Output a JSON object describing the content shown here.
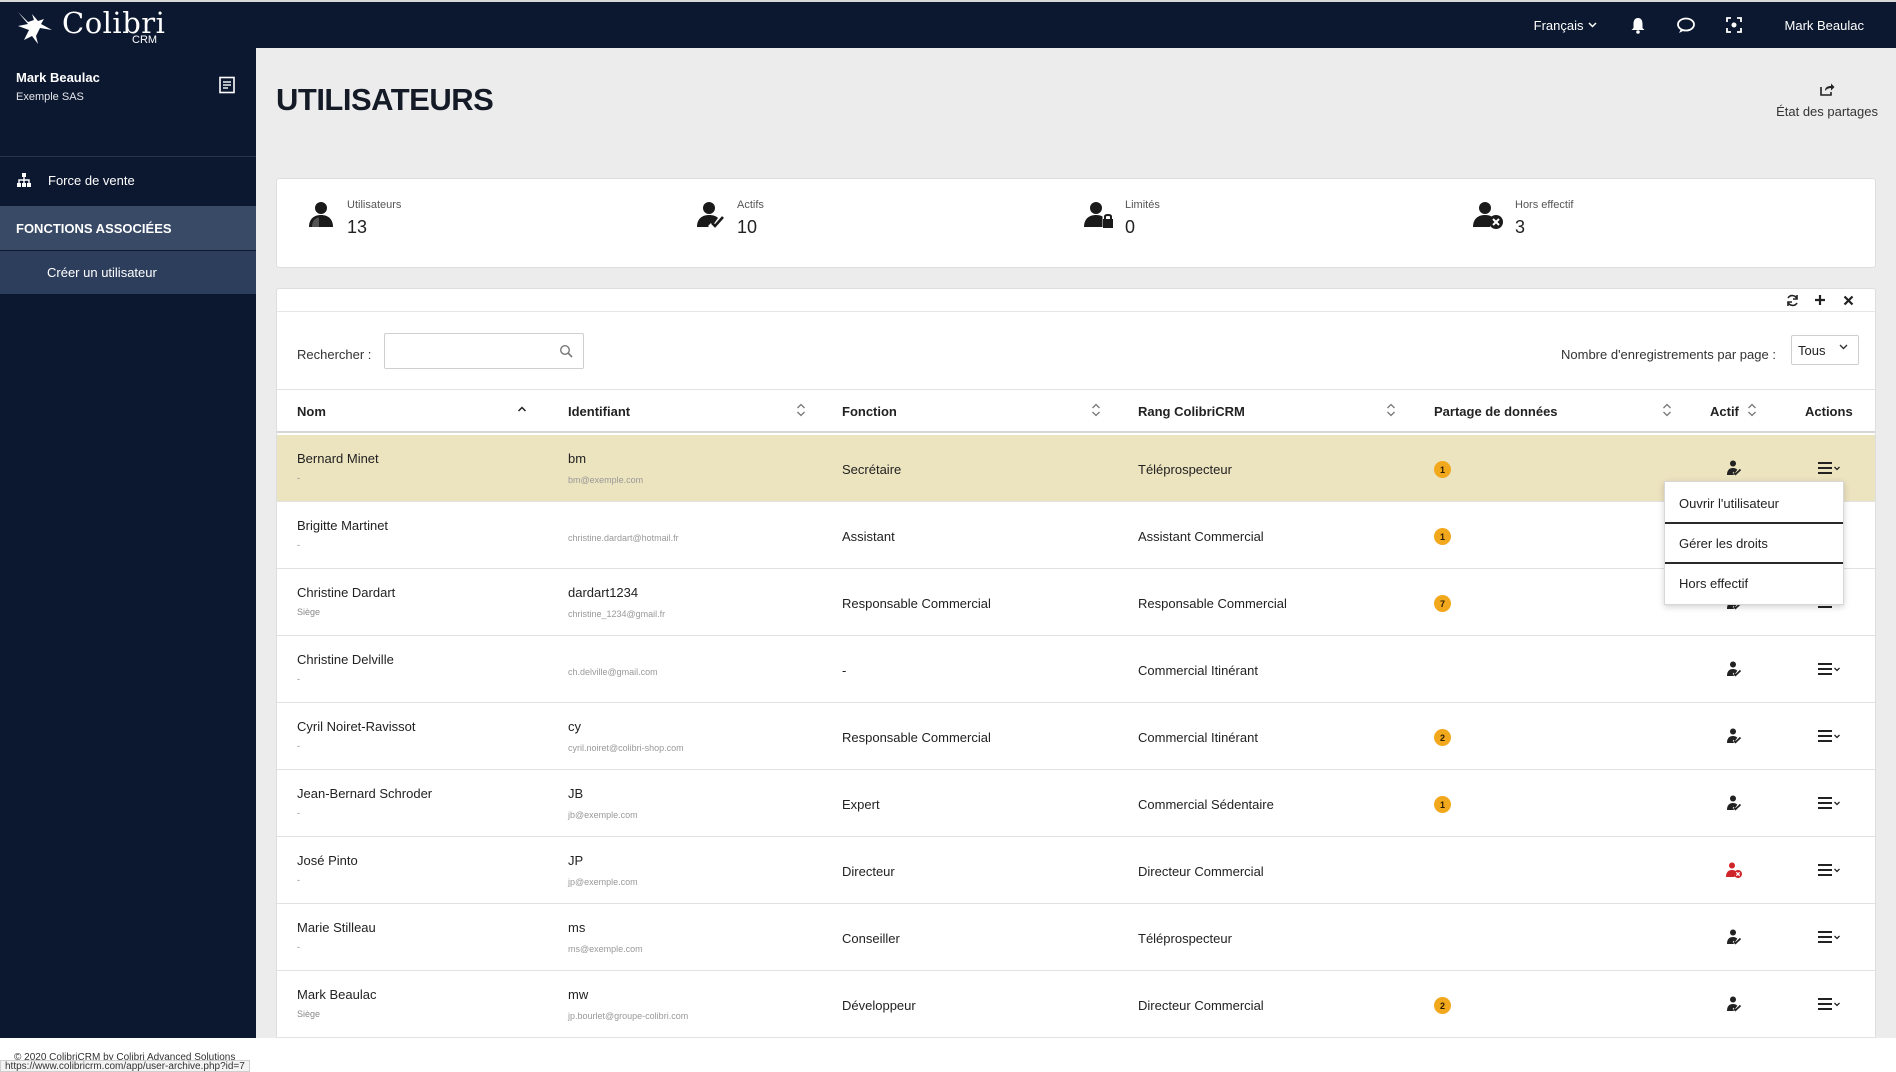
{
  "app": {
    "logo_text": "Colibri",
    "logo_sub": "CRM"
  },
  "topbar": {
    "language": "Français",
    "user": "Mark Beaulac"
  },
  "sidebar": {
    "user_name": "Mark Beaulac",
    "company": "Exemple SAS",
    "items": [
      {
        "label": "Force de vente"
      }
    ],
    "section_title": "FONCTIONS ASSOCIÉES",
    "sub_items": [
      {
        "label": "Créer un utilisateur"
      }
    ]
  },
  "page": {
    "title": "UTILISATEURS",
    "share_state_label": "État des partages"
  },
  "stats": [
    {
      "label": "Utilisateurs",
      "value": "13"
    },
    {
      "label": "Actifs",
      "value": "10"
    },
    {
      "label": "Limités",
      "value": "0"
    },
    {
      "label": "Hors effectif",
      "value": "3"
    }
  ],
  "table": {
    "search_label": "Rechercher :",
    "search_value": "",
    "per_page_label": "Nombre d'enregistrements par page :",
    "per_page_value": "Tous",
    "columns": [
      "Nom",
      "Identifiant",
      "Fonction",
      "Rang ColibriCRM",
      "Partage de données",
      "Actif",
      "Actions"
    ],
    "rows": [
      {
        "name": "Bernard Minet",
        "name_sub": "-",
        "id": "bm",
        "email": "bm@exemple.com",
        "function": "Secrétaire",
        "rank": "Téléprospecteur",
        "share": "1",
        "active": true,
        "highlighted": true
      },
      {
        "name": "Brigitte Martinet",
        "name_sub": "-",
        "id": "",
        "email": "christine.dardart@hotmail.fr",
        "function": "Assistant",
        "rank": "Assistant Commercial",
        "share": "1",
        "active": true
      },
      {
        "name": "Christine Dardart",
        "name_sub": "Siège",
        "id": "dardart1234",
        "email": "christine_1234@gmail.fr",
        "function": "Responsable Commercial",
        "rank": "Responsable Commercial",
        "share": "7",
        "active": true
      },
      {
        "name": "Christine Delville",
        "name_sub": "-",
        "id": "",
        "email": "ch.delville@gmail.com",
        "function": "-",
        "rank": "Commercial Itinérant",
        "share": "",
        "active": true
      },
      {
        "name": "Cyril Noiret-Ravissot",
        "name_sub": "-",
        "id": "cy",
        "email": "cyril.noiret@colibri-shop.com",
        "function": "Responsable Commercial",
        "rank": "Commercial Itinérant",
        "share": "2",
        "active": true
      },
      {
        "name": "Jean-Bernard Schroder",
        "name_sub": "-",
        "id": "JB",
        "email": "jb@exemple.com",
        "function": "Expert",
        "rank": "Commercial Sédentaire",
        "share": "1",
        "active": true
      },
      {
        "name": "José Pinto",
        "name_sub": "-",
        "id": "JP",
        "email": "jp@exemple.com",
        "function": "Directeur",
        "rank": "Directeur Commercial",
        "share": "",
        "active": false
      },
      {
        "name": "Marie Stilleau",
        "name_sub": "-",
        "id": "ms",
        "email": "ms@exemple.com",
        "function": "Conseiller",
        "rank": "Téléprospecteur",
        "share": "",
        "active": true
      },
      {
        "name": "Mark Beaulac",
        "name_sub": "Siège",
        "id": "mw",
        "email": "jp.bourlet@groupe-colibri.com",
        "function": "Développeur",
        "rank": "Directeur Commercial",
        "share": "2",
        "active": true
      }
    ]
  },
  "actions_menu": {
    "items": [
      "Ouvrir l'utilisateur",
      "Gérer les droits",
      "Hors effectif"
    ]
  },
  "footer": {
    "copyright": "© 2020  ColibriCRM by Colibri Advanced Solutions",
    "status_url": "https://www.colibricrm.com/app/user-archive.php?id=7"
  },
  "colors": {
    "nav_bg": "#0c1830",
    "highlight_row": "#ece3bf",
    "badge": "#f2a81d",
    "inactive_icon": "#d0242b"
  },
  "icons": {
    "bell": "bell-icon",
    "chat": "chat-icon",
    "focus": "focus-icon",
    "note": "note-icon",
    "org": "org-chart-icon",
    "share": "share-icon"
  }
}
